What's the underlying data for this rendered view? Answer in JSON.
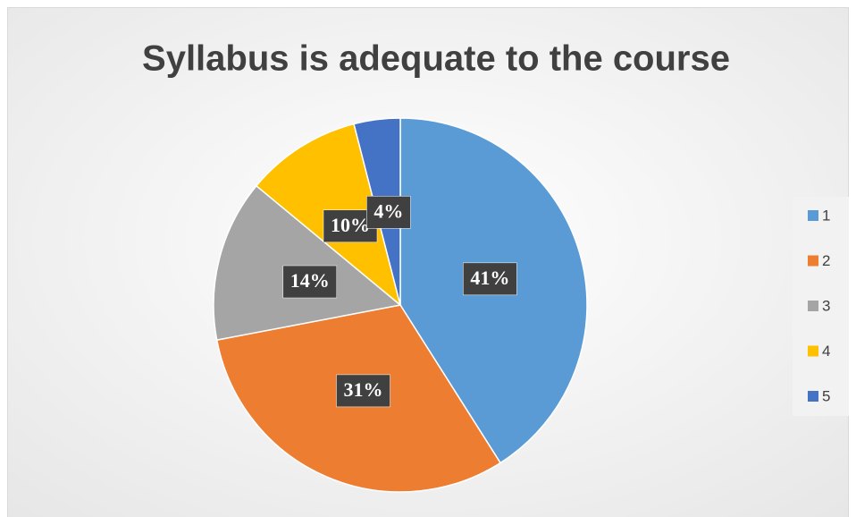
{
  "chart_data": {
    "type": "pie",
    "title": "Syllabus is adequate to the course",
    "categories": [
      "1",
      "2",
      "3",
      "4",
      "5"
    ],
    "values": [
      41,
      31,
      14,
      10,
      4
    ],
    "value_labels": [
      "41%",
      "31%",
      "14%",
      "10%",
      "4%"
    ],
    "colors": [
      "#5b9bd5",
      "#ed7d31",
      "#a5a5a5",
      "#ffc000",
      "#4472c4"
    ],
    "legend": "right"
  }
}
